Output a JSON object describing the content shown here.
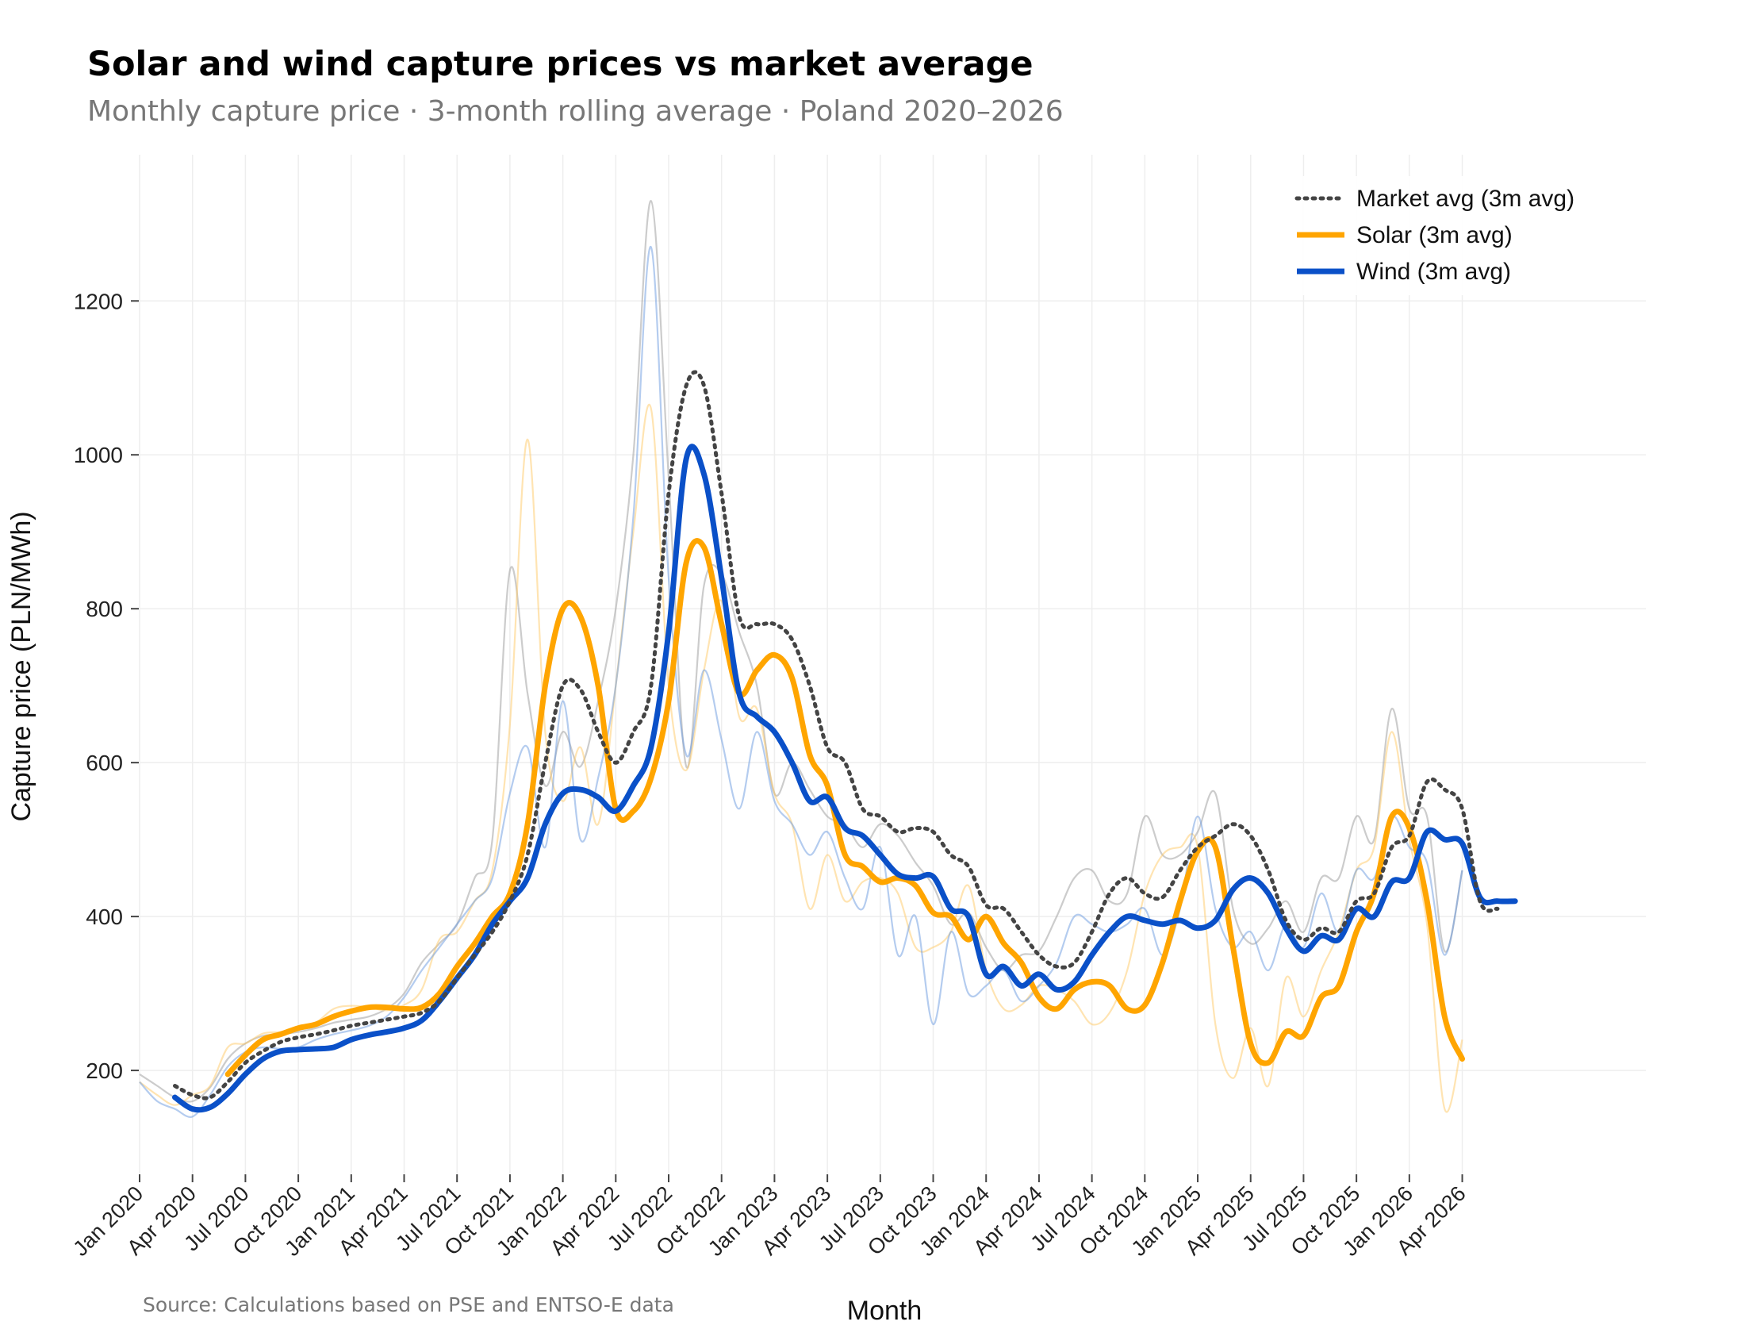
{
  "title": "Solar and wind capture prices vs market average",
  "subtitle": "Monthly capture price · 3-month rolling average · Poland 2020–2026",
  "source": "Source: Calculations based on PSE and ENTSO-E data",
  "colors": {
    "market": "#444444",
    "solar": "#FFA500",
    "wind": "#0A50C8",
    "market_raw": "#AAAAAA",
    "grid": "#EEEEEE"
  },
  "chart_data": {
    "type": "line",
    "xlabel": "Month",
    "ylabel": "Capture price (PLN/MWh)",
    "ylim": [
      65,
      1390
    ],
    "y_ticks": [
      200,
      400,
      600,
      800,
      1000,
      1200
    ],
    "x_ticks": [
      "Jan 2020",
      "Apr 2020",
      "Jul 2020",
      "Oct 2020",
      "Jan 2021",
      "Apr 2021",
      "Jul 2021",
      "Oct 2021",
      "Jan 2022",
      "Apr 2022",
      "Jul 2022",
      "Oct 2022",
      "Jan 2023",
      "Apr 2023",
      "Jul 2023",
      "Oct 2023",
      "Jan 2024",
      "Apr 2024",
      "Jul 2024",
      "Oct 2024",
      "Jan 2025",
      "Apr 2025",
      "Jul 2025",
      "Oct 2025",
      "Jan 2026",
      "Apr 2026"
    ],
    "x_start": "Jan 2020",
    "x_end": "Jun 2026",
    "legend_position": "top-right",
    "grid": true,
    "series": [
      {
        "name": "Market avg (3m avg)",
        "key": "market",
        "style": "dotted",
        "start_month": 2,
        "values": [
          180,
          168,
          165,
          185,
          210,
          225,
          237,
          243,
          247,
          252,
          258,
          262,
          266,
          270,
          275,
          290,
          320,
          350,
          380,
          420,
          480,
          600,
          700,
          695,
          640,
          600,
          640,
          700,
          950,
          1090,
          1090,
          950,
          790,
          780,
          780,
          760,
          700,
          620,
          600,
          540,
          530,
          510,
          515,
          510,
          480,
          465,
          415,
          410,
          380,
          350,
          335,
          340,
          380,
          430,
          450,
          430,
          425,
          460,
          490,
          505,
          520,
          505,
          460,
          395,
          370,
          385,
          380,
          420,
          430,
          490,
          505,
          575,
          565,
          540,
          420,
          410
        ]
      },
      {
        "name": "Solar (3m avg)",
        "key": "solar",
        "style": "solid",
        "start_month": 5,
        "values": [
          195,
          220,
          240,
          247,
          255,
          260,
          270,
          277,
          282,
          282,
          280,
          282,
          300,
          335,
          365,
          400,
          430,
          520,
          700,
          800,
          790,
          700,
          540,
          537,
          580,
          680,
          860,
          880,
          780,
          690,
          720,
          740,
          710,
          610,
          570,
          480,
          465,
          445,
          450,
          440,
          405,
          400,
          370,
          400,
          365,
          340,
          295,
          280,
          305,
          315,
          310,
          280,
          285,
          340,
          420,
          485,
          490,
          360,
          235,
          210,
          250,
          245,
          295,
          310,
          380,
          430,
          530,
          515,
          420,
          270,
          215
        ]
      },
      {
        "name": "Wind (3m avg)",
        "key": "wind",
        "style": "solid",
        "start_month": 2,
        "values": [
          165,
          150,
          152,
          170,
          195,
          215,
          225,
          227,
          228,
          230,
          240,
          246,
          250,
          255,
          265,
          290,
          320,
          350,
          390,
          420,
          450,
          520,
          560,
          565,
          555,
          537,
          570,
          620,
          770,
          995,
          975,
          840,
          690,
          660,
          640,
          600,
          550,
          555,
          515,
          505,
          480,
          455,
          450,
          452,
          410,
          400,
          325,
          335,
          310,
          325,
          305,
          315,
          350,
          380,
          400,
          395,
          390,
          395,
          385,
          395,
          435,
          450,
          430,
          385,
          355,
          375,
          370,
          410,
          400,
          445,
          450,
          510,
          500,
          495,
          425,
          420,
          420
        ]
      }
    ],
    "raw_series": [
      {
        "key": "market_raw",
        "start_month": 0,
        "values": [
          195,
          180,
          165,
          160,
          178,
          215,
          235,
          245,
          247,
          250,
          255,
          262,
          266,
          270,
          280,
          300,
          340,
          365,
          390,
          450,
          500,
          850,
          690,
          570,
          640,
          595,
          680,
          800,
          1000,
          1330,
          970,
          595,
          830,
          845,
          770,
          700,
          560,
          600,
          565,
          530,
          520,
          490,
          520,
          505,
          470,
          440,
          390,
          405,
          360,
          330,
          350,
          355,
          400,
          450,
          460,
          420,
          430,
          530,
          480,
          480,
          510,
          560,
          410,
          365,
          385,
          420,
          380,
          450,
          450,
          530,
          500,
          670,
          540,
          530,
          355,
          460
        ]
      },
      {
        "key": "solar_raw",
        "start_month": 0,
        "values": [
          185,
          168,
          155,
          168,
          180,
          230,
          235,
          248,
          250,
          255,
          262,
          280,
          284,
          282,
          278,
          285,
          305,
          370,
          380,
          420,
          460,
          650,
          1020,
          640,
          550,
          620,
          520,
          700,
          900,
          1060,
          700,
          590,
          720,
          810,
          660,
          670,
          560,
          520,
          410,
          480,
          420,
          445,
          450,
          430,
          360,
          360,
          380,
          440,
          330,
          280,
          285,
          310,
          305,
          290,
          260,
          275,
          330,
          430,
          480,
          490,
          490,
          260,
          190,
          255,
          180,
          320,
          270,
          330,
          380,
          460,
          490,
          640,
          500,
          390,
          150,
          240
        ]
      },
      {
        "key": "wind_raw",
        "start_month": 0,
        "values": [
          185,
          160,
          150,
          140,
          168,
          205,
          224,
          230,
          228,
          230,
          240,
          247,
          252,
          258,
          270,
          295,
          330,
          360,
          390,
          420,
          450,
          560,
          620,
          490,
          680,
          500,
          580,
          700,
          920,
          1270,
          840,
          610,
          720,
          630,
          540,
          640,
          550,
          520,
          480,
          510,
          450,
          410,
          490,
          350,
          400,
          260,
          380,
          300,
          310,
          330,
          290,
          310,
          340,
          400,
          390,
          380,
          390,
          410,
          350,
          410,
          530,
          410,
          360,
          380,
          330,
          390,
          360,
          430,
          380,
          460,
          450,
          530,
          490,
          470,
          350,
          460
        ]
      }
    ]
  }
}
